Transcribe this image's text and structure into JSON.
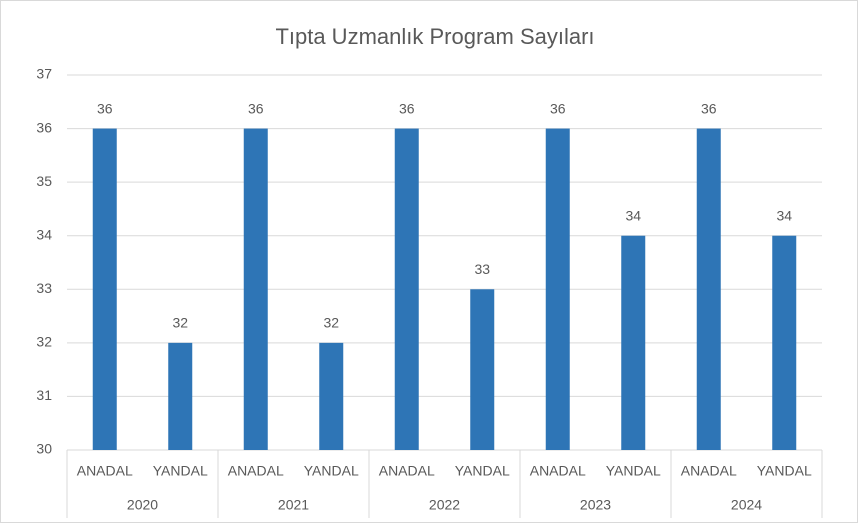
{
  "chart_data": {
    "type": "bar",
    "title": "Tıpta Uzmanlık Program Sayıları",
    "groups": [
      {
        "name": "2020",
        "categories": [
          "ANADAL",
          "YANDAL"
        ],
        "values": [
          36,
          32
        ]
      },
      {
        "name": "2021",
        "categories": [
          "ANADAL",
          "YANDAL"
        ],
        "values": [
          36,
          32
        ]
      },
      {
        "name": "2022",
        "categories": [
          "ANADAL",
          "YANDAL"
        ],
        "values": [
          36,
          33
        ]
      },
      {
        "name": "2023",
        "categories": [
          "ANADAL",
          "YANDAL"
        ],
        "values": [
          36,
          34
        ]
      },
      {
        "name": "2024",
        "categories": [
          "ANADAL",
          "YANDAL"
        ],
        "values": [
          36,
          34
        ]
      }
    ],
    "color": "#2e75b6",
    "ylim": [
      30,
      37
    ],
    "yticks": [
      30,
      31,
      32,
      33,
      34,
      35,
      36,
      37
    ],
    "grid": true
  }
}
